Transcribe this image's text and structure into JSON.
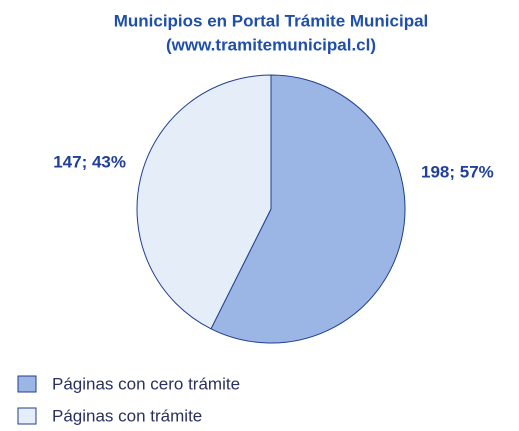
{
  "chart_data": {
    "type": "pie",
    "title": "Municipios en Portal Trámite Municipal",
    "subtitle": "(www.tramitemunicipal.cl)",
    "categories": [
      "Páginas con cero trámite",
      "Páginas con trámite"
    ],
    "values": [
      198,
      147
    ],
    "value_labels": [
      "198; 57%",
      "147; 43%"
    ],
    "colors": [
      "#9bb5e5",
      "#e5edf9"
    ],
    "legend": "bottom-left"
  }
}
